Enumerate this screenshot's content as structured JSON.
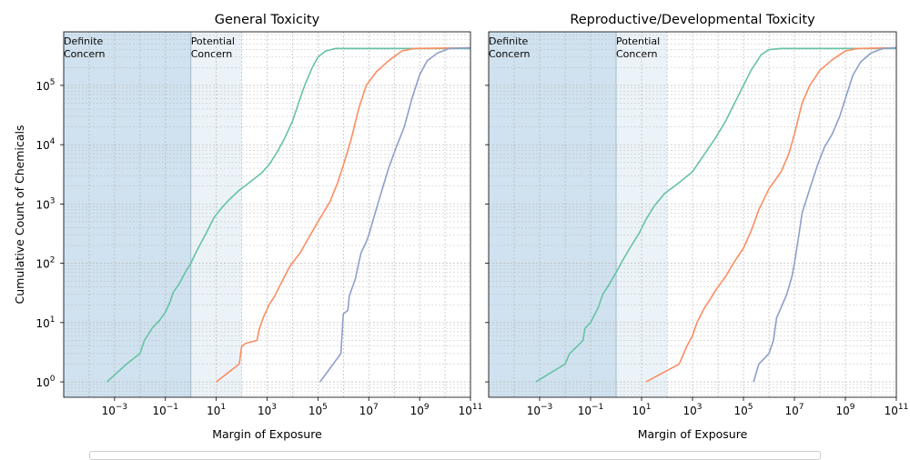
{
  "figure": {
    "ylabel": "Cumulative Count of Chemicals"
  },
  "chart_data": [
    {
      "type": "line",
      "title": "General Toxicity",
      "xlabel": "Margin of Exposure",
      "ylabel": "Cumulative Count of Chemicals",
      "xscale": "log",
      "yscale": "log",
      "xlim": [
        1e-05,
        100000000000.0
      ],
      "ylim": [
        0.55,
        800000
      ],
      "grid": true,
      "x_tick_labels": [
        "10^-3",
        "10^-1",
        "10^1",
        "10^3",
        "10^5",
        "10^7",
        "10^9",
        "10^11"
      ],
      "y_tick_labels": [
        "10^0",
        "10^1",
        "10^2",
        "10^3",
        "10^4",
        "10^5"
      ],
      "regions": [
        {
          "label": "Definite\nConcern",
          "x_range": [
            1e-05,
            1
          ],
          "color": "#a9cbe2"
        },
        {
          "label": "Potential\nConcern",
          "x_range": [
            1,
            100
          ],
          "color": "#dbe9f3"
        }
      ],
      "series": [
        {
          "color": "#66c2a5",
          "points": [
            [
              0.0005,
              1
            ],
            [
              0.003,
              2
            ],
            [
              0.01,
              3
            ],
            [
              0.015,
              5
            ],
            [
              0.03,
              8
            ],
            [
              0.06,
              11
            ],
            [
              0.1,
              15
            ],
            [
              0.15,
              22
            ],
            [
              0.2,
              32
            ],
            [
              0.35,
              45
            ],
            [
              0.6,
              70
            ],
            [
              1,
              100
            ],
            [
              1.5,
              145
            ],
            [
              2.5,
              220
            ],
            [
              4,
              320
            ],
            [
              8,
              580
            ],
            [
              15,
              820
            ],
            [
              30,
              1150
            ],
            [
              80,
              1700
            ],
            [
              200,
              2300
            ],
            [
              600,
              3300
            ],
            [
              1200,
              4600
            ],
            [
              2500,
              7500
            ],
            [
              5000,
              13000
            ],
            [
              10000.0,
              25000
            ],
            [
              20000.0,
              60000
            ],
            [
              30000.0,
              100000
            ],
            [
              60000.0,
              200000
            ],
            [
              100000.0,
              300000
            ],
            [
              200000.0,
              380000
            ],
            [
              500000.0,
              420000
            ],
            [
              100000000000.0,
              420000
            ]
          ]
        },
        {
          "color": "#fc8d62",
          "points": [
            [
              10,
              1
            ],
            [
              80,
              2
            ],
            [
              100,
              4
            ],
            [
              150,
              4.5
            ],
            [
              400,
              5
            ],
            [
              500,
              8
            ],
            [
              700,
              12
            ],
            [
              1200,
              20
            ],
            [
              2000,
              28
            ],
            [
              3000,
              40
            ],
            [
              8000,
              90
            ],
            [
              20000.0,
              150
            ],
            [
              50000.0,
              300
            ],
            [
              100000.0,
              500
            ],
            [
              300000.0,
              1100
            ],
            [
              600000.0,
              2300
            ],
            [
              1000000.0,
              4500
            ],
            [
              2000000.0,
              12000
            ],
            [
              4000000.0,
              40000
            ],
            [
              8000000.0,
              100000
            ],
            [
              20000000.0,
              170000
            ],
            [
              60000000.0,
              260000
            ],
            [
              200000000.0,
              380000
            ],
            [
              600000000.0,
              420000
            ],
            [
              100000000000.0,
              430000
            ]
          ]
        },
        {
          "color": "#8da0cb",
          "points": [
            [
              120000.0,
              1
            ],
            [
              400000.0,
              2
            ],
            [
              800000.0,
              3
            ],
            [
              1000000.0,
              14
            ],
            [
              1500000.0,
              16
            ],
            [
              1700000.0,
              28
            ],
            [
              3000000.0,
              55
            ],
            [
              4000000.0,
              100
            ],
            [
              5000000.0,
              150
            ],
            [
              8000000.0,
              230
            ],
            [
              10000000.0,
              300
            ],
            [
              15000000.0,
              550
            ],
            [
              30000000.0,
              1500
            ],
            [
              60000000.0,
              4000
            ],
            [
              120000000.0,
              9000
            ],
            [
              250000000.0,
              20000
            ],
            [
              500000000.0,
              60000
            ],
            [
              1000000000.0,
              150000
            ],
            [
              2000000000.0,
              260000
            ],
            [
              5000000000.0,
              350000
            ],
            [
              15000000000.0,
              420000
            ],
            [
              100000000000.0,
              430000
            ]
          ]
        }
      ]
    },
    {
      "type": "line",
      "title": "Reproductive/Developmental Toxicity",
      "xlabel": "Margin of Exposure",
      "ylabel": "",
      "xscale": "log",
      "yscale": "log",
      "xlim": [
        1e-05,
        100000000000.0
      ],
      "ylim": [
        0.55,
        800000
      ],
      "grid": true,
      "x_tick_labels": [
        "10^-3",
        "10^-1",
        "10^1",
        "10^3",
        "10^5",
        "10^7",
        "10^9",
        "10^11"
      ],
      "y_tick_labels": [],
      "regions": [
        {
          "label": "Definite\nConcern",
          "x_range": [
            1e-05,
            1
          ],
          "color": "#a9cbe2"
        },
        {
          "label": "Potential\nConcern",
          "x_range": [
            1,
            100
          ],
          "color": "#dbe9f3"
        }
      ],
      "series": [
        {
          "color": "#66c2a5",
          "points": [
            [
              0.0007,
              1
            ],
            [
              0.01,
              2
            ],
            [
              0.015,
              3
            ],
            [
              0.03,
              4
            ],
            [
              0.05,
              5
            ],
            [
              0.06,
              8
            ],
            [
              0.1,
              10
            ],
            [
              0.2,
              18
            ],
            [
              0.3,
              30
            ],
            [
              0.5,
              42
            ],
            [
              1,
              70
            ],
            [
              2,
              120
            ],
            [
              4,
              200
            ],
            [
              8,
              320
            ],
            [
              15,
              550
            ],
            [
              30,
              900
            ],
            [
              80,
              1500
            ],
            [
              300,
              2300
            ],
            [
              1000,
              3500
            ],
            [
              3000,
              7000
            ],
            [
              8000,
              13000
            ],
            [
              20000.0,
              25000
            ],
            [
              50000.0,
              55000
            ],
            [
              100000.0,
              100000
            ],
            [
              200000.0,
              180000
            ],
            [
              500000.0,
              330000
            ],
            [
              1000000.0,
              400000
            ],
            [
              3000000.0,
              420000
            ],
            [
              100000000000.0,
              420000
            ]
          ]
        },
        {
          "color": "#fc8d62",
          "points": [
            [
              15,
              1
            ],
            [
              300,
              2
            ],
            [
              600,
              4
            ],
            [
              1000,
              6
            ],
            [
              1500,
              10
            ],
            [
              3000,
              18
            ],
            [
              5000,
              25
            ],
            [
              8000,
              35
            ],
            [
              20000.0,
              60
            ],
            [
              40000.0,
              100
            ],
            [
              100000.0,
              180
            ],
            [
              200000.0,
              350
            ],
            [
              400000.0,
              800
            ],
            [
              1000000.0,
              1800
            ],
            [
              3000000.0,
              3500
            ],
            [
              6000000.0,
              7000
            ],
            [
              10000000.0,
              15000
            ],
            [
              20000000.0,
              50000
            ],
            [
              40000000.0,
              100000
            ],
            [
              100000000.0,
              180000
            ],
            [
              300000000.0,
              270000
            ],
            [
              1000000000.0,
              380000
            ],
            [
              3000000000.0,
              420000
            ],
            [
              100000000000.0,
              430000
            ]
          ]
        },
        {
          "color": "#8da0cb",
          "points": [
            [
              250000.0,
              1
            ],
            [
              400000.0,
              2
            ],
            [
              1000000.0,
              3
            ],
            [
              1500000.0,
              5
            ],
            [
              2000000.0,
              12
            ],
            [
              3000000.0,
              18
            ],
            [
              5000000.0,
              30
            ],
            [
              8000000.0,
              60
            ],
            [
              10000000.0,
              100
            ],
            [
              15000000.0,
              300
            ],
            [
              20000000.0,
              700
            ],
            [
              40000000.0,
              1800
            ],
            [
              80000000.0,
              4500
            ],
            [
              150000000.0,
              9000
            ],
            [
              300000000.0,
              15000
            ],
            [
              600000000.0,
              30000
            ],
            [
              1000000000.0,
              60000
            ],
            [
              2000000000.0,
              150000
            ],
            [
              4000000000.0,
              250000
            ],
            [
              10000000000.0,
              350000
            ],
            [
              30000000000.0,
              420000
            ],
            [
              100000000000.0,
              430000
            ]
          ]
        }
      ]
    }
  ]
}
